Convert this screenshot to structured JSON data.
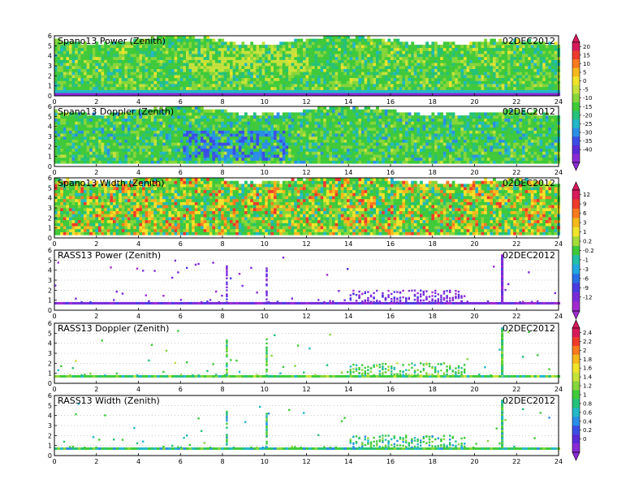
{
  "panels": [
    {
      "title": "Spano13 Power (Zenith)",
      "date": "02DEC2012",
      "kind": "dense",
      "scale": "A",
      "theme": "power"
    },
    {
      "title": "Spano13 Doppler (Zenith)",
      "date": "02DEC2012",
      "kind": "dense",
      "scale": "A",
      "theme": "doppler"
    },
    {
      "title": "Spano13 Width (Zenith)",
      "date": "02DEC2012",
      "kind": "dense",
      "scale": "B",
      "theme": "width"
    },
    {
      "title": "RASS13 Power (Zenith)",
      "date": "02DEC2012",
      "kind": "sparse",
      "scale": "B",
      "theme": "rpower"
    },
    {
      "title": "RASS13 Doppler (Zenith)",
      "date": "02DEC2012",
      "kind": "sparse",
      "scale": "C",
      "theme": "rdoppler"
    },
    {
      "title": "RASS13 Width (Zenith)",
      "date": "02DEC2012",
      "kind": "sparse",
      "scale": "C",
      "theme": "rwidth"
    }
  ],
  "chart_data": {
    "type": "heatmap",
    "x_ticks": [
      "0",
      "2",
      "4",
      "6",
      "8",
      "10",
      "12",
      "14",
      "16",
      "18",
      "20",
      "22",
      "24"
    ],
    "y_ticks": [
      "0",
      "1",
      "2",
      "3",
      "4",
      "5",
      "6"
    ],
    "xlim": [
      0,
      24
    ],
    "ylim": [
      0,
      6
    ],
    "colorbars": [
      {
        "id": "A",
        "labels": [
          "20",
          "15",
          "10",
          "5",
          "0",
          "-5",
          "-10",
          "-15",
          "-20",
          "-25",
          "-30",
          "-35",
          "-40"
        ],
        "colors": [
          "#d81a5a",
          "#ef3a2c",
          "#f97a1e",
          "#f7b81c",
          "#f0e42a",
          "#c6e23a",
          "#86d63a",
          "#3fca3a",
          "#24c27a",
          "#22b8c8",
          "#2a8ee6",
          "#3a4ee6",
          "#5a2ad8",
          "#8a2ad6"
        ]
      },
      {
        "id": "B",
        "labels": [
          "12",
          "9",
          "6",
          "3",
          "1",
          "0.2",
          "-0.2",
          "-1",
          "-3",
          "-6",
          "-9",
          "-12"
        ],
        "colors": [
          "#d81a5a",
          "#ef3a2c",
          "#f97a1e",
          "#f7b81c",
          "#f0e42a",
          "#a6dc3a",
          "#3fca3a",
          "#22c0a8",
          "#22a8e0",
          "#2a6ee6",
          "#4a3ae0",
          "#7a2ad8",
          "#a02ad0"
        ]
      },
      {
        "id": "C",
        "labels": [
          "2.4",
          "2.2",
          "2",
          "1.8",
          "1.6",
          "1.4",
          "1.2",
          "1",
          "0.8",
          "0.6",
          "0.4",
          "0.2",
          "0"
        ],
        "colors": [
          "#d81a5a",
          "#ef3a2c",
          "#f97a1e",
          "#f7b81c",
          "#f0e42a",
          "#c6e23a",
          "#86d63a",
          "#3fca3a",
          "#24c27a",
          "#22b8c8",
          "#2a8ee6",
          "#3a4ee6",
          "#5a2ad8",
          "#8a2ad6"
        ]
      }
    ]
  }
}
